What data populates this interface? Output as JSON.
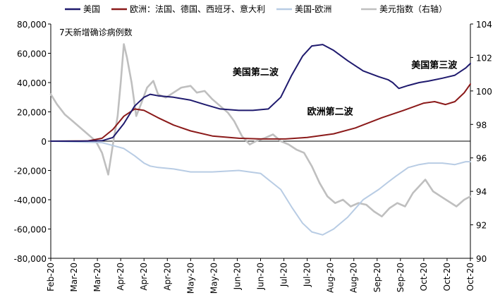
{
  "chart_data": {
    "type": "line",
    "subtitle": "7天新增确诊病例数",
    "left_axis": {
      "ylim": [
        -80000,
        80000
      ],
      "ticks": [
        80000,
        60000,
        40000,
        20000,
        0,
        -20000,
        -40000,
        -60000,
        -80000
      ],
      "tick_labels": [
        "80,000",
        "60,000",
        "40,000",
        "20,000",
        "0",
        "-20,000",
        "-40,000",
        "-60,000",
        "-80,000"
      ],
      "last_label_color": "#c00000"
    },
    "right_axis": {
      "ylim": [
        90,
        104
      ],
      "ticks": [
        104,
        102,
        100,
        98,
        96,
        94,
        92,
        90
      ],
      "tick_labels": [
        "104",
        "102",
        "100",
        "98",
        "96",
        "94",
        "92",
        "90"
      ]
    },
    "x_axis": {
      "range": [
        "2020-02-01",
        "2020-10-28"
      ],
      "tick_dates": [
        "2020-02-01",
        "2020-02-16",
        "2020-03-02",
        "2020-03-17",
        "2020-04-01",
        "2020-04-16",
        "2020-05-01",
        "2020-05-16",
        "2020-05-31",
        "2020-06-15",
        "2020-06-30",
        "2020-07-15",
        "2020-07-30",
        "2020-08-14",
        "2020-08-29",
        "2020-09-13",
        "2020-09-28",
        "2020-10-13",
        "2020-10-28"
      ],
      "tick_labels": [
        "Feb-20",
        "Mar-20",
        "Mar-20",
        "Apr-20",
        "Apr-20",
        "Apr-20",
        "May-20",
        "May-20",
        "Jun-20",
        "Jun-20",
        "Jul-20",
        "Jul-20",
        "Aug-20",
        "Aug-20",
        "Sep-20",
        "Sep-20",
        "Oct-20",
        "Oct-20",
        "Oct-20"
      ]
    },
    "legend": {
      "placement": "top",
      "entries": [
        {
          "name": "美国",
          "color": "#1f1a6e"
        },
        {
          "name": "欧洲：法国、德国、西班牙、意大利",
          "color": "#8b1a1a"
        },
        {
          "name": "美国-欧洲",
          "color": "#b8cce4"
        },
        {
          "name": "美元指数（右轴）",
          "color": "#bfbfbf"
        }
      ]
    },
    "annotations": [
      {
        "text": "美国第二波",
        "date": "2020-05-28",
        "value": 45000
      },
      {
        "text": "欧洲第二波",
        "date": "2020-07-15",
        "value": 18000
      },
      {
        "text": "美国第三波",
        "date": "2020-09-20",
        "value": 50000
      }
    ],
    "series": [
      {
        "name": "美国",
        "axis": "left",
        "color": "#1f1a6e",
        "x": [
          "2020-02-01",
          "2020-02-20",
          "2020-03-05",
          "2020-03-12",
          "2020-03-19",
          "2020-03-26",
          "2020-04-01",
          "2020-04-05",
          "2020-04-10",
          "2020-04-20",
          "2020-05-01",
          "2020-05-10",
          "2020-05-20",
          "2020-06-01",
          "2020-06-10",
          "2020-06-20",
          "2020-06-28",
          "2020-07-05",
          "2020-07-12",
          "2020-07-18",
          "2020-07-25",
          "2020-08-01",
          "2020-08-10",
          "2020-08-20",
          "2020-08-30",
          "2020-09-05",
          "2020-09-08",
          "2020-09-12",
          "2020-09-18",
          "2020-09-25",
          "2020-10-01",
          "2020-10-10",
          "2020-10-18",
          "2020-10-25",
          "2020-10-28"
        ],
        "values": [
          0,
          0,
          300,
          2500,
          12000,
          24000,
          30000,
          32000,
          31000,
          30000,
          28000,
          25000,
          22000,
          21000,
          21000,
          22000,
          30000,
          45000,
          58000,
          65000,
          66000,
          62000,
          55000,
          48000,
          44000,
          42000,
          40000,
          36000,
          38000,
          40000,
          41000,
          43000,
          45000,
          50000,
          53000
        ]
      },
      {
        "name": "欧洲：法国、德国、西班牙、意大利",
        "axis": "left",
        "color": "#8b1a1a",
        "x": [
          "2020-02-01",
          "2020-02-25",
          "2020-03-05",
          "2020-03-12",
          "2020-03-19",
          "2020-03-26",
          "2020-04-01",
          "2020-04-10",
          "2020-04-20",
          "2020-05-01",
          "2020-05-15",
          "2020-06-01",
          "2020-06-15",
          "2020-07-01",
          "2020-07-15",
          "2020-08-01",
          "2020-08-15",
          "2020-09-01",
          "2020-09-15",
          "2020-09-28",
          "2020-10-05",
          "2020-10-12",
          "2020-10-18",
          "2020-10-24",
          "2020-10-28"
        ],
        "values": [
          0,
          200,
          2000,
          8000,
          17000,
          22000,
          21000,
          16000,
          11000,
          7000,
          3500,
          2000,
          1500,
          1500,
          2500,
          5000,
          9000,
          16000,
          21000,
          26000,
          27000,
          25000,
          27000,
          33000,
          39000
        ]
      },
      {
        "name": "美国-欧洲",
        "axis": "left",
        "color": "#b8cce4",
        "x": [
          "2020-02-01",
          "2020-03-05",
          "2020-03-12",
          "2020-03-19",
          "2020-03-26",
          "2020-04-01",
          "2020-04-05",
          "2020-04-10",
          "2020-04-20",
          "2020-05-01",
          "2020-05-15",
          "2020-06-01",
          "2020-06-15",
          "2020-06-28",
          "2020-07-05",
          "2020-07-12",
          "2020-07-18",
          "2020-07-25",
          "2020-08-01",
          "2020-08-10",
          "2020-08-20",
          "2020-08-30",
          "2020-09-05",
          "2020-09-10",
          "2020-09-18",
          "2020-09-25",
          "2020-10-01",
          "2020-10-10",
          "2020-10-18",
          "2020-10-25",
          "2020-10-28"
        ],
        "values": [
          0,
          -1000,
          -3000,
          -5000,
          -10000,
          -15000,
          -17000,
          -18000,
          -19000,
          -21000,
          -21000,
          -20000,
          -22000,
          -33000,
          -45000,
          -56000,
          -62000,
          -64000,
          -60000,
          -52000,
          -40000,
          -33000,
          -28000,
          -24000,
          -18000,
          -16000,
          -15000,
          -15000,
          -16000,
          -14000,
          -14000
        ]
      },
      {
        "name": "美元指数（右轴）",
        "axis": "right",
        "color": "#bfbfbf",
        "x": [
          "2020-02-01",
          "2020-02-05",
          "2020-02-10",
          "2020-02-15",
          "2020-02-20",
          "2020-02-25",
          "2020-03-01",
          "2020-03-05",
          "2020-03-09",
          "2020-03-12",
          "2020-03-15",
          "2020-03-17",
          "2020-03-19",
          "2020-03-21",
          "2020-03-24",
          "2020-03-27",
          "2020-03-30",
          "2020-04-03",
          "2020-04-07",
          "2020-04-10",
          "2020-04-15",
          "2020-04-20",
          "2020-04-25",
          "2020-05-01",
          "2020-05-05",
          "2020-05-10",
          "2020-05-15",
          "2020-05-20",
          "2020-05-25",
          "2020-05-29",
          "2020-06-03",
          "2020-06-08",
          "2020-06-12",
          "2020-06-18",
          "2020-06-23",
          "2020-06-28",
          "2020-07-03",
          "2020-07-08",
          "2020-07-13",
          "2020-07-18",
          "2020-07-23",
          "2020-07-28",
          "2020-08-02",
          "2020-08-07",
          "2020-08-12",
          "2020-08-17",
          "2020-08-22",
          "2020-08-27",
          "2020-09-01",
          "2020-09-06",
          "2020-09-11",
          "2020-09-16",
          "2020-09-21",
          "2020-09-25",
          "2020-09-29",
          "2020-10-04",
          "2020-10-09",
          "2020-10-14",
          "2020-10-19",
          "2020-10-24",
          "2020-10-28"
        ],
        "values": [
          99.8,
          99.2,
          98.6,
          98.2,
          97.8,
          97.4,
          97.0,
          96.3,
          95.0,
          96.8,
          98.5,
          100.5,
          102.8,
          102.0,
          100.5,
          98.5,
          99.2,
          100.2,
          100.6,
          99.8,
          99.6,
          99.9,
          100.2,
          100.3,
          99.9,
          100.0,
          99.5,
          99.1,
          98.7,
          98.2,
          97.3,
          96.8,
          97.0,
          97.2,
          97.4,
          97.0,
          96.8,
          96.5,
          96.3,
          95.5,
          94.5,
          93.7,
          93.3,
          93.5,
          93.1,
          93.3,
          93.2,
          92.8,
          92.5,
          93.0,
          93.3,
          93.1,
          93.9,
          94.3,
          94.7,
          94.0,
          93.7,
          93.4,
          93.1,
          93.5,
          93.7
        ]
      }
    ]
  }
}
